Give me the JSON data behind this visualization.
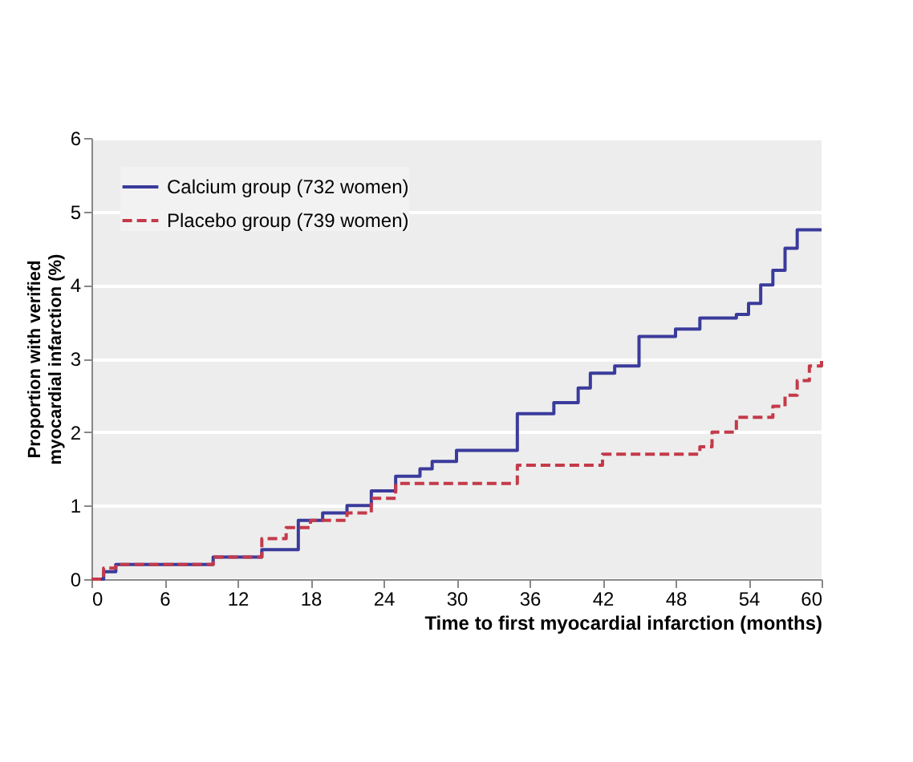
{
  "chart_data": {
    "type": "step",
    "xlabel": "Time to first myocardial infarction (months)",
    "ylabel": "Proportion with verified myocardial infarction (%)",
    "xlim": [
      0,
      60
    ],
    "xticks": [
      0,
      6,
      12,
      18,
      24,
      30,
      36,
      42,
      48,
      54,
      60
    ],
    "ylim": [
      0,
      6
    ],
    "yticks": [
      0,
      1,
      2,
      3,
      4,
      5,
      6
    ],
    "grid": "y",
    "legend": "top left",
    "series": [
      {
        "name": "Calcium group (732 women)",
        "color": "#3b3b9c",
        "line_style": "solid",
        "x": [
          0,
          1,
          2,
          10,
          14,
          17,
          19,
          21,
          23,
          25,
          27,
          28,
          30,
          35,
          38,
          40,
          41,
          43,
          45,
          48,
          50,
          53,
          54,
          55,
          56,
          57,
          58,
          60
        ],
        "values": [
          0,
          0.1,
          0.2,
          0.3,
          0.4,
          0.8,
          0.9,
          1.0,
          1.2,
          1.4,
          1.5,
          1.6,
          1.75,
          2.25,
          2.4,
          2.6,
          2.8,
          2.9,
          3.3,
          3.4,
          3.55,
          3.6,
          3.75,
          4.0,
          4.2,
          4.5,
          4.75,
          4.75
        ]
      },
      {
        "name": "Placebo group (739 women)",
        "color": "#c43a4a",
        "line_style": "dashed",
        "x": [
          0,
          1,
          2,
          10,
          14,
          16,
          18,
          21,
          23,
          25,
          26,
          35,
          42,
          50,
          51,
          53,
          56,
          57,
          58,
          59,
          60
        ],
        "values": [
          0,
          0.15,
          0.2,
          0.3,
          0.55,
          0.7,
          0.8,
          0.9,
          1.1,
          1.3,
          1.3,
          1.55,
          1.7,
          1.8,
          2.0,
          2.2,
          2.35,
          2.5,
          2.7,
          2.9,
          3.0
        ]
      }
    ]
  }
}
